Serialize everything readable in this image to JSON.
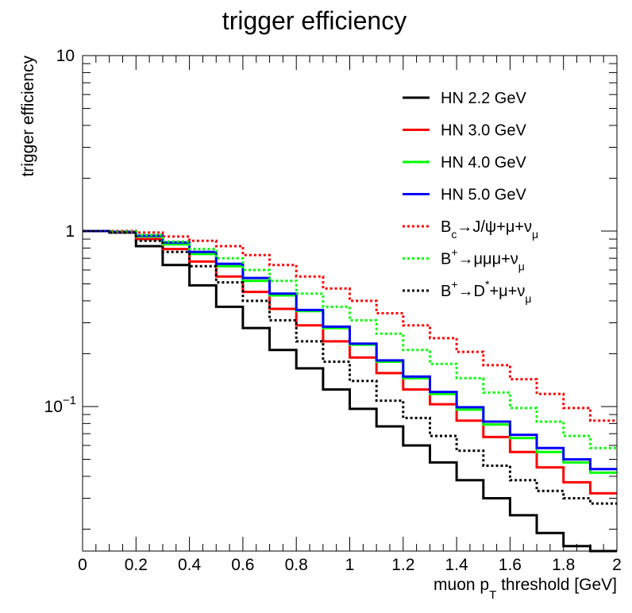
{
  "chart_data": {
    "type": "line",
    "title": "trigger efficiency",
    "xlabel": "muon p_T threshold [GeV]",
    "ylabel": "trigger efficiency",
    "xlim": [
      0,
      2
    ],
    "ylim": [
      0.015,
      10
    ],
    "yscale": "log",
    "grid": false,
    "legend_position": "top-right",
    "x_tick_labels": [
      "0",
      "0.2",
      "0.4",
      "0.6",
      "0.8",
      "1",
      "1.2",
      "1.4",
      "1.6",
      "1.8",
      "2"
    ],
    "y_tick_labels": [
      {
        "value": 10,
        "base": "10",
        "exp": ""
      },
      {
        "value": 1,
        "base": "1",
        "exp": ""
      },
      {
        "value": 0.1,
        "base": "10",
        "exp": "−1"
      }
    ],
    "bin_edges": [
      0,
      0.1,
      0.2,
      0.3,
      0.4,
      0.5,
      0.6,
      0.7,
      0.8,
      0.9,
      1.0,
      1.1,
      1.2,
      1.3,
      1.4,
      1.5,
      1.6,
      1.7,
      1.8,
      1.9,
      2.0
    ],
    "series": [
      {
        "name": "HN 2.2 GeV",
        "color": "#000000",
        "style": "solid",
        "values": [
          1.0,
          0.98,
          0.82,
          0.64,
          0.49,
          0.37,
          0.28,
          0.21,
          0.165,
          0.125,
          0.097,
          0.077,
          0.06,
          0.048,
          0.038,
          0.03,
          0.024,
          0.019,
          0.016,
          0.015
        ]
      },
      {
        "name": "HN 3.0 GeV",
        "color": "#ff0000",
        "style": "solid",
        "values": [
          1.0,
          0.985,
          0.9,
          0.79,
          0.67,
          0.55,
          0.45,
          0.36,
          0.29,
          0.235,
          0.19,
          0.155,
          0.125,
          0.103,
          0.083,
          0.067,
          0.055,
          0.045,
          0.037,
          0.032
        ]
      },
      {
        "name": "HN 4.0 GeV",
        "color": "#00ff00",
        "style": "solid",
        "values": [
          1.0,
          0.99,
          0.93,
          0.84,
          0.74,
          0.63,
          0.52,
          0.43,
          0.35,
          0.28,
          0.225,
          0.18,
          0.145,
          0.118,
          0.096,
          0.079,
          0.066,
          0.055,
          0.048,
          0.042
        ]
      },
      {
        "name": "HN 5.0 GeV",
        "color": "#0000ff",
        "style": "solid",
        "values": [
          1.0,
          0.99,
          0.94,
          0.86,
          0.76,
          0.65,
          0.54,
          0.44,
          0.355,
          0.285,
          0.228,
          0.183,
          0.148,
          0.121,
          0.099,
          0.082,
          0.069,
          0.058,
          0.05,
          0.044
        ]
      },
      {
        "name": "B_c→J/ψ+μ+ν_μ",
        "color": "#ff0000",
        "style": "dotted",
        "values": [
          1.0,
          1.0,
          0.98,
          0.93,
          0.88,
          0.82,
          0.73,
          0.64,
          0.55,
          0.47,
          0.4,
          0.34,
          0.29,
          0.245,
          0.205,
          0.172,
          0.143,
          0.118,
          0.098,
          0.083
        ]
      },
      {
        "name": "B⁺→μμμ+ν_μ",
        "color": "#00ff00",
        "style": "dotted",
        "values": [
          1.0,
          0.99,
          0.95,
          0.87,
          0.79,
          0.7,
          0.6,
          0.52,
          0.44,
          0.37,
          0.31,
          0.26,
          0.21,
          0.175,
          0.145,
          0.12,
          0.098,
          0.082,
          0.068,
          0.058
        ]
      },
      {
        "name": "B⁺→D*+μ+ν_μ",
        "color": "#000000",
        "style": "dotted",
        "values": [
          1.0,
          0.98,
          0.88,
          0.76,
          0.63,
          0.51,
          0.4,
          0.31,
          0.235,
          0.18,
          0.14,
          0.108,
          0.086,
          0.068,
          0.056,
          0.046,
          0.038,
          0.033,
          0.03,
          0.028
        ]
      }
    ]
  }
}
